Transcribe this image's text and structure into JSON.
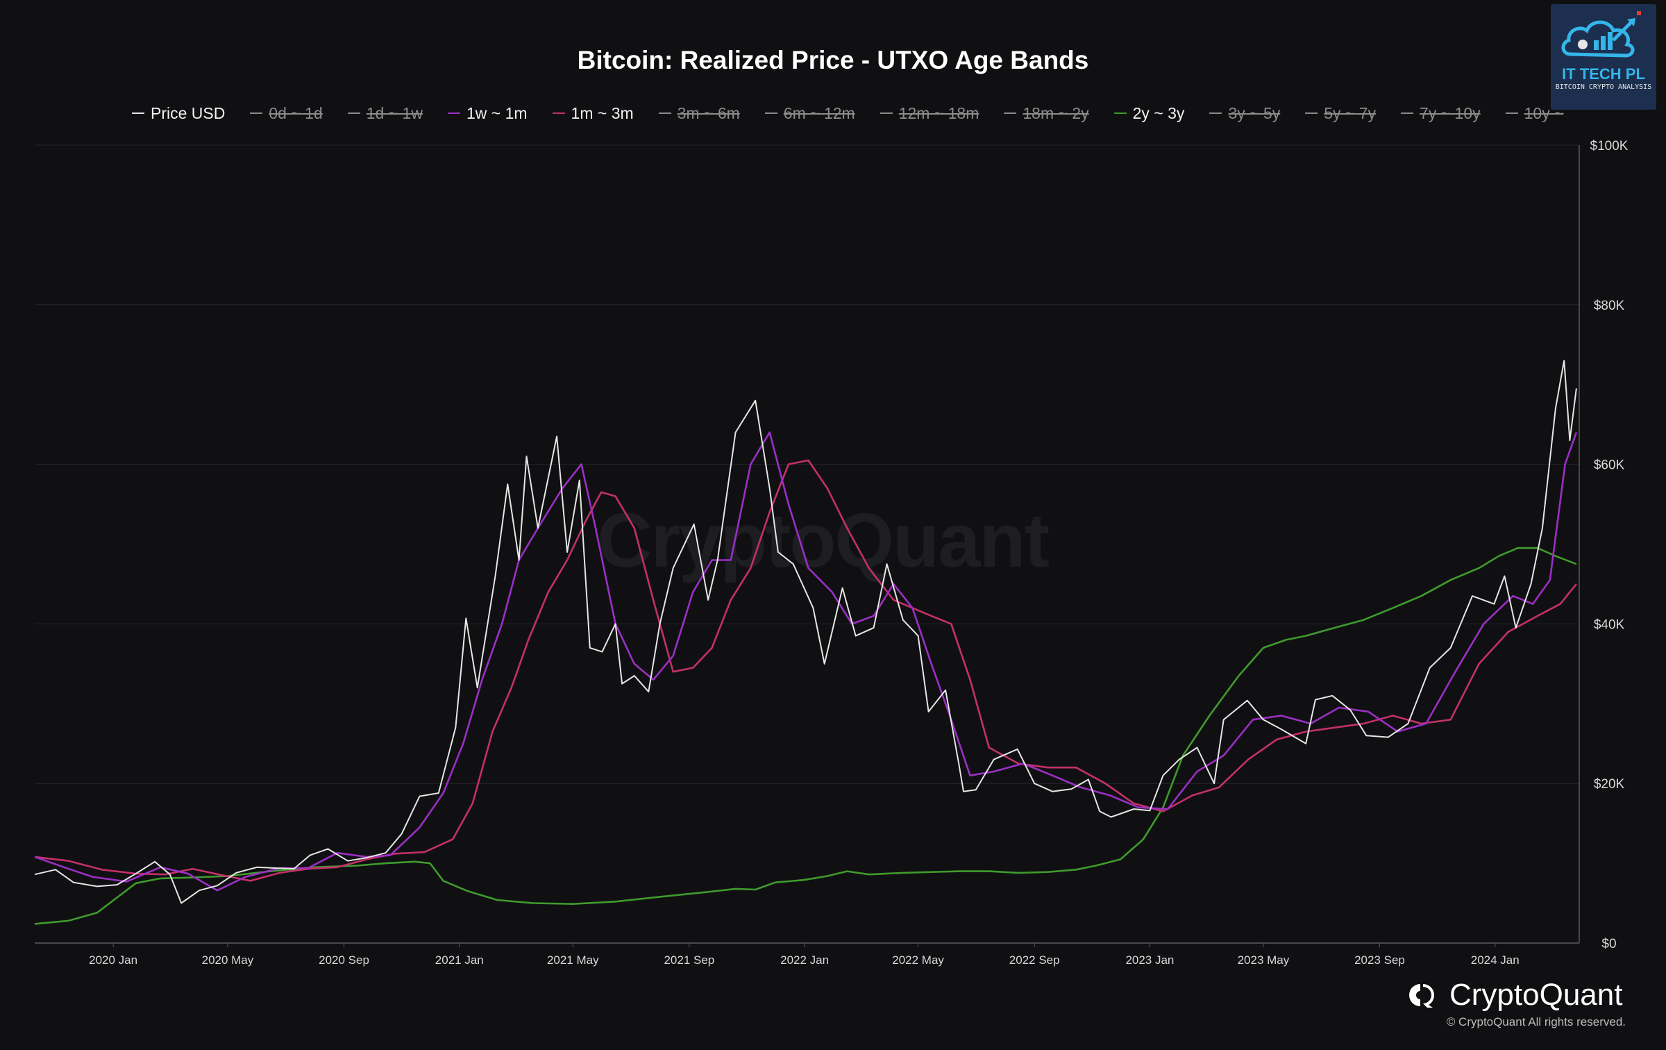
{
  "chart_data": {
    "type": "line",
    "title": "Bitcoin: Realized Price - UTXO Age Bands",
    "legend": [
      {
        "name": "Price USD",
        "color": "#e6e6e6",
        "active": true
      },
      {
        "name": "0d ~ 1d",
        "color": "#8c8c8c",
        "active": false
      },
      {
        "name": "1d ~ 1w",
        "color": "#8c8c8c",
        "active": false
      },
      {
        "name": "1w ~ 1m",
        "color": "#9b2fc4",
        "active": true
      },
      {
        "name": "1m ~ 3m",
        "color": "#c4306a",
        "active": true
      },
      {
        "name": "3m ~ 6m",
        "color": "#8c8c8c",
        "active": false
      },
      {
        "name": "6m ~ 12m",
        "color": "#8c8c8c",
        "active": false
      },
      {
        "name": "12m ~ 18m",
        "color": "#8c8c8c",
        "active": false
      },
      {
        "name": "18m ~ 2y",
        "color": "#8c8c8c",
        "active": false
      },
      {
        "name": "2y ~ 3y",
        "color": "#3f9b2c",
        "active": true
      },
      {
        "name": "3y ~ 5y",
        "color": "#8c8c8c",
        "active": false
      },
      {
        "name": "5y ~ 7y",
        "color": "#8c8c8c",
        "active": false
      },
      {
        "name": "7y ~ 10y",
        "color": "#8c8c8c",
        "active": false
      },
      {
        "name": "10y ~",
        "color": "#8c8c8c",
        "active": false
      }
    ],
    "x_ticks": [
      "2020 Jan",
      "2020 May",
      "2020 Sep",
      "2021 Jan",
      "2021 May",
      "2021 Sep",
      "2022 Jan",
      "2022 May",
      "2022 Sep",
      "2023 Jan",
      "2023 May",
      "2023 Sep",
      "2024 Jan"
    ],
    "y_ticks": [
      "$0",
      "$20K",
      "$40K",
      "$60K",
      "$80K",
      "$100K"
    ],
    "ylim": [
      0,
      100000
    ],
    "xlim": [
      "2019-10-10",
      "2024-03-30"
    ],
    "grid": true,
    "series": [
      {
        "name": "Price USD",
        "color": "#e6e6e6",
        "x": [
          "2019-10-10",
          "2019-11-01",
          "2019-11-20",
          "2019-12-15",
          "2020-01-05",
          "2020-01-25",
          "2020-02-14",
          "2020-03-01",
          "2020-03-13",
          "2020-04-01",
          "2020-04-20",
          "2020-05-10",
          "2020-06-01",
          "2020-06-20",
          "2020-07-10",
          "2020-07-27",
          "2020-08-15",
          "2020-09-05",
          "2020-09-25",
          "2020-10-15",
          "2020-11-01",
          "2020-11-20",
          "2020-12-10",
          "2020-12-28",
          "2021-01-08",
          "2021-01-20",
          "2021-02-08",
          "2021-02-21",
          "2021-03-05",
          "2021-03-13",
          "2021-03-25",
          "2021-04-14",
          "2021-04-25",
          "2021-05-08",
          "2021-05-19",
          "2021-06-01",
          "2021-06-15",
          "2021-06-22",
          "2021-07-05",
          "2021-07-20",
          "2021-08-01",
          "2021-08-15",
          "2021-09-06",
          "2021-09-21",
          "2021-10-01",
          "2021-10-20",
          "2021-11-10",
          "2021-11-25",
          "2021-12-04",
          "2021-12-20",
          "2022-01-10",
          "2022-01-22",
          "2022-02-10",
          "2022-02-24",
          "2022-03-15",
          "2022-03-29",
          "2022-04-15",
          "2022-05-01",
          "2022-05-12",
          "2022-05-30",
          "2022-06-13",
          "2022-06-18",
          "2022-07-01",
          "2022-07-20",
          "2022-08-14",
          "2022-09-01",
          "2022-09-20",
          "2022-10-10",
          "2022-10-28",
          "2022-11-09",
          "2022-11-21",
          "2022-12-15",
          "2023-01-01",
          "2023-01-15",
          "2023-02-01",
          "2023-02-20",
          "2023-03-10",
          "2023-03-20",
          "2023-04-14",
          "2023-05-01",
          "2023-05-20",
          "2023-06-15",
          "2023-06-25",
          "2023-07-13",
          "2023-08-01",
          "2023-08-18",
          "2023-09-10",
          "2023-10-01",
          "2023-10-24",
          "2023-11-15",
          "2023-12-08",
          "2023-12-31",
          "2024-01-11",
          "2024-01-23",
          "2024-02-08",
          "2024-02-20",
          "2024-03-05",
          "2024-03-14",
          "2024-03-20",
          "2024-03-27"
        ],
        "values": [
          8600,
          9200,
          7600,
          7100,
          7300,
          8700,
          10200,
          8600,
          5000,
          6600,
          7200,
          8800,
          9500,
          9400,
          9300,
          11000,
          11800,
          10300,
          10700,
          11300,
          13700,
          18400,
          18800,
          27000,
          40700,
          32000,
          46000,
          57500,
          48000,
          61000,
          52000,
          63500,
          49000,
          58000,
          37000,
          36500,
          40000,
          32500,
          33500,
          31500,
          40000,
          47000,
          52500,
          43000,
          48000,
          64000,
          68000,
          57000,
          49000,
          47500,
          42000,
          35000,
          44500,
          38500,
          39500,
          47500,
          40500,
          38500,
          29000,
          31700,
          22500,
          19000,
          19200,
          23000,
          24300,
          20000,
          19000,
          19300,
          20500,
          16500,
          15800,
          16800,
          16600,
          21000,
          23000,
          24500,
          20000,
          28000,
          30400,
          28000,
          26800,
          25000,
          30500,
          31000,
          29200,
          26000,
          25800,
          27500,
          34500,
          37000,
          43500,
          42500,
          46000,
          39500,
          45000,
          52000,
          67000,
          73000,
          63000,
          69500
        ]
      },
      {
        "name": "1w ~ 1m",
        "color": "#9b2fc4",
        "x": [
          "2019-10-10",
          "2019-11-10",
          "2019-12-10",
          "2020-01-15",
          "2020-02-20",
          "2020-03-20",
          "2020-04-20",
          "2020-05-20",
          "2020-06-25",
          "2020-07-25",
          "2020-08-25",
          "2020-09-25",
          "2020-10-20",
          "2020-11-20",
          "2020-12-15",
          "2021-01-05",
          "2021-01-25",
          "2021-02-15",
          "2021-03-05",
          "2021-03-25",
          "2021-04-20",
          "2021-05-10",
          "2021-05-25",
          "2021-06-15",
          "2021-07-05",
          "2021-07-25",
          "2021-08-15",
          "2021-09-05",
          "2021-09-25",
          "2021-10-15",
          "2021-11-05",
          "2021-11-25",
          "2021-12-15",
          "2022-01-05",
          "2022-01-30",
          "2022-02-20",
          "2022-03-15",
          "2022-04-05",
          "2022-04-25",
          "2022-05-15",
          "2022-06-05",
          "2022-06-25",
          "2022-07-20",
          "2022-08-20",
          "2022-09-20",
          "2022-10-20",
          "2022-11-20",
          "2022-12-20",
          "2023-01-20",
          "2023-02-20",
          "2023-03-20",
          "2023-04-20",
          "2023-05-20",
          "2023-06-20",
          "2023-07-20",
          "2023-08-20",
          "2023-09-20",
          "2023-10-20",
          "2023-11-20",
          "2023-12-20",
          "2024-01-20",
          "2024-02-10",
          "2024-02-28",
          "2024-03-15",
          "2024-03-27"
        ],
        "values": [
          10800,
          9500,
          8300,
          7700,
          9500,
          8700,
          6600,
          8300,
          9400,
          9400,
          11300,
          10800,
          11000,
          14500,
          18800,
          25000,
          33000,
          40000,
          48000,
          52000,
          57000,
          60000,
          52000,
          40000,
          35000,
          33000,
          36000,
          44000,
          48000,
          48000,
          60000,
          64000,
          55000,
          47000,
          44000,
          40000,
          41000,
          45000,
          42000,
          35000,
          28000,
          21000,
          21500,
          22500,
          21000,
          19500,
          18500,
          17000,
          16800,
          21500,
          23500,
          28000,
          28500,
          27500,
          29500,
          29000,
          26500,
          27500,
          34000,
          40000,
          43500,
          42500,
          45500,
          60000,
          64000
        ]
      },
      {
        "name": "1m ~ 3m",
        "color": "#c4306a",
        "x": [
          "2019-10-10",
          "2019-11-15",
          "2019-12-20",
          "2020-01-25",
          "2020-02-25",
          "2020-03-25",
          "2020-04-25",
          "2020-05-25",
          "2020-06-25",
          "2020-07-25",
          "2020-08-25",
          "2020-09-25",
          "2020-10-25",
          "2020-11-25",
          "2020-12-25",
          "2021-01-15",
          "2021-02-05",
          "2021-02-25",
          "2021-03-15",
          "2021-04-05",
          "2021-04-25",
          "2021-05-15",
          "2021-05-31",
          "2021-06-15",
          "2021-07-05",
          "2021-07-25",
          "2021-08-15",
          "2021-09-05",
          "2021-09-25",
          "2021-10-15",
          "2021-11-05",
          "2021-11-25",
          "2021-12-15",
          "2022-01-05",
          "2022-01-25",
          "2022-02-15",
          "2022-03-10",
          "2022-04-05",
          "2022-04-25",
          "2022-05-15",
          "2022-06-05",
          "2022-06-25",
          "2022-07-15",
          "2022-08-15",
          "2022-09-15",
          "2022-10-15",
          "2022-11-15",
          "2022-12-15",
          "2023-01-15",
          "2023-02-15",
          "2023-03-15",
          "2023-04-15",
          "2023-05-15",
          "2023-06-15",
          "2023-07-15",
          "2023-08-15",
          "2023-09-15",
          "2023-10-15",
          "2023-11-15",
          "2023-12-15",
          "2024-01-15",
          "2024-02-15",
          "2024-03-10",
          "2024-03-27"
        ],
        "values": [
          10800,
          10300,
          9200,
          8700,
          8600,
          9300,
          8500,
          7800,
          8800,
          9300,
          9500,
          10500,
          11200,
          11400,
          13000,
          17500,
          26500,
          32000,
          38000,
          44000,
          48000,
          53000,
          56500,
          56000,
          52000,
          43000,
          34000,
          34500,
          37000,
          43000,
          47000,
          54000,
          60000,
          60500,
          57000,
          52000,
          47000,
          43000,
          42000,
          41000,
          40000,
          33000,
          24500,
          22500,
          22000,
          22000,
          20000,
          17500,
          16500,
          18500,
          19500,
          23000,
          25500,
          26500,
          27000,
          27500,
          28500,
          27500,
          28000,
          35000,
          39000,
          41000,
          42500,
          45000
        ]
      },
      {
        "name": "2y ~ 3y",
        "color": "#3f9b2c",
        "x": [
          "2019-10-10",
          "2019-11-15",
          "2019-12-15",
          "2020-01-05",
          "2020-01-25",
          "2020-02-20",
          "2020-03-20",
          "2020-05-01",
          "2020-06-15",
          "2020-08-01",
          "2020-09-15",
          "2020-10-15",
          "2020-11-15",
          "2020-12-01",
          "2020-12-15",
          "2021-01-10",
          "2021-02-10",
          "2021-03-20",
          "2021-05-01",
          "2021-06-15",
          "2021-08-01",
          "2021-09-20",
          "2021-10-20",
          "2021-11-10",
          "2021-12-01",
          "2021-12-31",
          "2022-01-25",
          "2022-02-15",
          "2022-03-10",
          "2022-04-15",
          "2022-05-15",
          "2022-06-15",
          "2022-07-15",
          "2022-08-15",
          "2022-09-15",
          "2022-10-15",
          "2022-11-05",
          "2022-12-01",
          "2022-12-25",
          "2023-01-15",
          "2023-02-05",
          "2023-03-05",
          "2023-04-05",
          "2023-05-01",
          "2023-05-25",
          "2023-06-15",
          "2023-07-15",
          "2023-08-15",
          "2023-09-15",
          "2023-10-15",
          "2023-11-15",
          "2023-12-15",
          "2024-01-05",
          "2024-01-25",
          "2024-02-15",
          "2024-03-05",
          "2024-03-27"
        ],
        "values": [
          2400,
          2800,
          3800,
          5700,
          7500,
          8100,
          8200,
          8400,
          9000,
          9500,
          9700,
          10000,
          10200,
          10000,
          7800,
          6500,
          5400,
          5000,
          4900,
          5200,
          5800,
          6400,
          6800,
          6700,
          7600,
          7900,
          8400,
          9000,
          8600,
          8800,
          8900,
          9000,
          9000,
          8800,
          8900,
          9200,
          9700,
          10500,
          13000,
          17000,
          23500,
          28500,
          33500,
          37000,
          38000,
          38500,
          39500,
          40500,
          42000,
          43500,
          45500,
          47000,
          48500,
          49500,
          49500,
          48500,
          47500
        ]
      }
    ]
  },
  "branding": {
    "watermark": "CryptoQuant",
    "brand_name": "CryptoQuant",
    "copyright": "© CryptoQuant All rights reserved.",
    "corner_logo_title": "IT TECH PL",
    "corner_logo_subtitle": "BITCOIN CRYPTO ANALYSIS"
  }
}
